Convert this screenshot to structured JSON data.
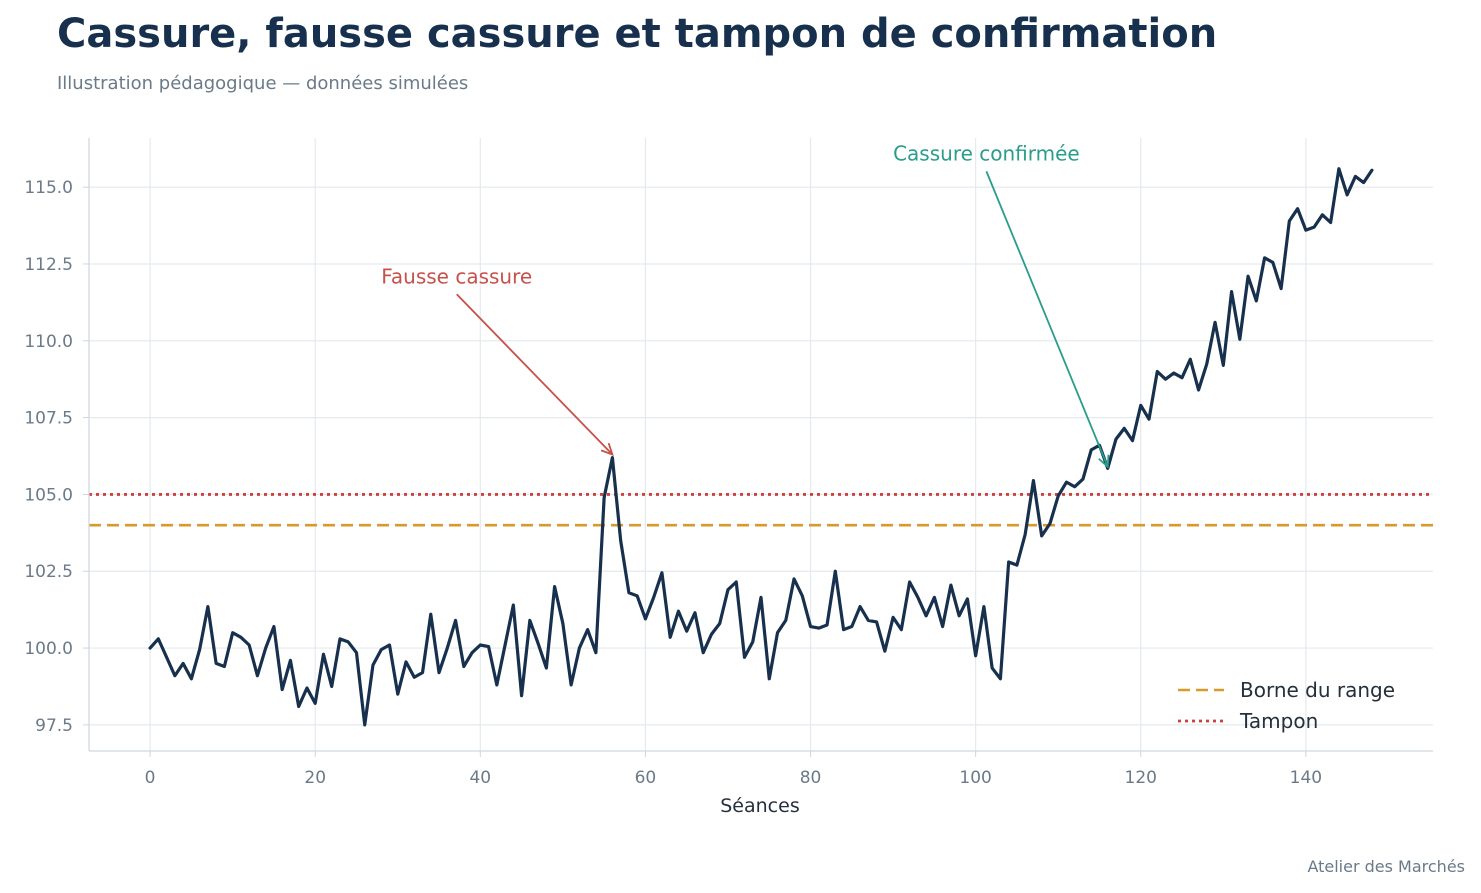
{
  "header": {
    "title": "Cassure, fausse cassure et tampon de confirmation",
    "subtitle": "Illustration pédagogique — données simulées"
  },
  "footer": {
    "credit": "Atelier des Marchés"
  },
  "colors": {
    "series": "#17304d",
    "range_bound": "#d89a2b",
    "buffer": "#d0403c",
    "false_break": "#c8504a",
    "confirmed": "#2a9d8a",
    "grid": "#e4e9ee",
    "spine": "#cfd6de"
  },
  "chart_data": {
    "type": "line",
    "xlabel": "Séances",
    "ylabel": "",
    "xlim": [
      -7.4,
      155.4
    ],
    "ylim": [
      96.65,
      116.6
    ],
    "x_ticks": [
      0,
      20,
      40,
      60,
      80,
      100,
      120,
      140
    ],
    "y_ticks": [
      97.5,
      100.0,
      102.5,
      105.0,
      107.5,
      110.0,
      112.5,
      115.0
    ],
    "grid": true,
    "series": [
      {
        "name": "",
        "x_start": 0,
        "x_step": 1,
        "values": [
          100.0,
          100.3,
          99.7,
          99.1,
          99.5,
          99.0,
          99.95,
          101.35,
          99.5,
          99.4,
          100.5,
          100.35,
          100.1,
          99.1,
          100.0,
          100.7,
          98.65,
          99.6,
          98.1,
          98.7,
          98.2,
          99.8,
          98.75,
          100.3,
          100.2,
          99.85,
          97.5,
          99.45,
          99.95,
          100.1,
          98.5,
          99.55,
          99.05,
          99.2,
          101.1,
          99.2,
          100.0,
          100.9,
          99.4,
          99.85,
          100.1,
          100.05,
          98.8,
          100.1,
          101.4,
          98.45,
          100.9,
          100.15,
          99.35,
          102.0,
          100.8,
          98.8,
          100.0,
          100.6,
          99.85,
          104.9,
          106.2,
          103.5,
          101.8,
          101.7,
          100.95,
          101.65,
          102.45,
          100.35,
          101.2,
          100.55,
          101.15,
          99.85,
          100.45,
          100.8,
          101.9,
          102.15,
          99.7,
          100.2,
          101.65,
          99.0,
          100.5,
          100.9,
          102.25,
          101.7,
          100.7,
          100.65,
          100.75,
          102.5,
          100.6,
          100.7,
          101.35,
          100.9,
          100.85,
          99.9,
          101.0,
          100.6,
          102.15,
          101.65,
          101.05,
          101.65,
          100.7,
          102.05,
          101.05,
          101.6,
          99.75,
          101.35,
          99.35,
          99.0,
          102.8,
          102.7,
          103.7,
          105.45,
          103.65,
          104.05,
          104.95,
          105.4,
          105.25,
          105.5,
          106.45,
          106.6,
          105.85,
          106.8,
          107.15,
          106.75,
          107.9,
          107.45,
          109.0,
          108.75,
          108.95,
          108.8,
          109.4,
          108.4,
          109.25,
          110.6,
          109.2,
          111.6,
          110.05,
          112.1,
          111.3,
          112.7,
          112.55,
          111.7,
          113.9,
          114.3,
          113.6,
          113.7,
          114.1,
          113.85,
          115.6,
          114.75,
          115.35,
          115.15,
          115.55
        ]
      }
    ],
    "reference_lines": [
      {
        "name": "Borne du range",
        "y": 104.0,
        "style": "dashed"
      },
      {
        "name": "Tampon",
        "y": 105.0,
        "style": "dotted"
      }
    ],
    "annotations": [
      {
        "text": "Fausse cassure",
        "x": 56,
        "y": 106.3,
        "text_x": 28,
        "text_y": 112.1
      },
      {
        "text": "Cassure confirmée",
        "x": 116,
        "y": 105.9,
        "text_x": 90,
        "text_y": 116.1
      }
    ],
    "legend": {
      "position": "lower-right",
      "entries": [
        "Borne du range",
        "Tampon"
      ]
    }
  }
}
